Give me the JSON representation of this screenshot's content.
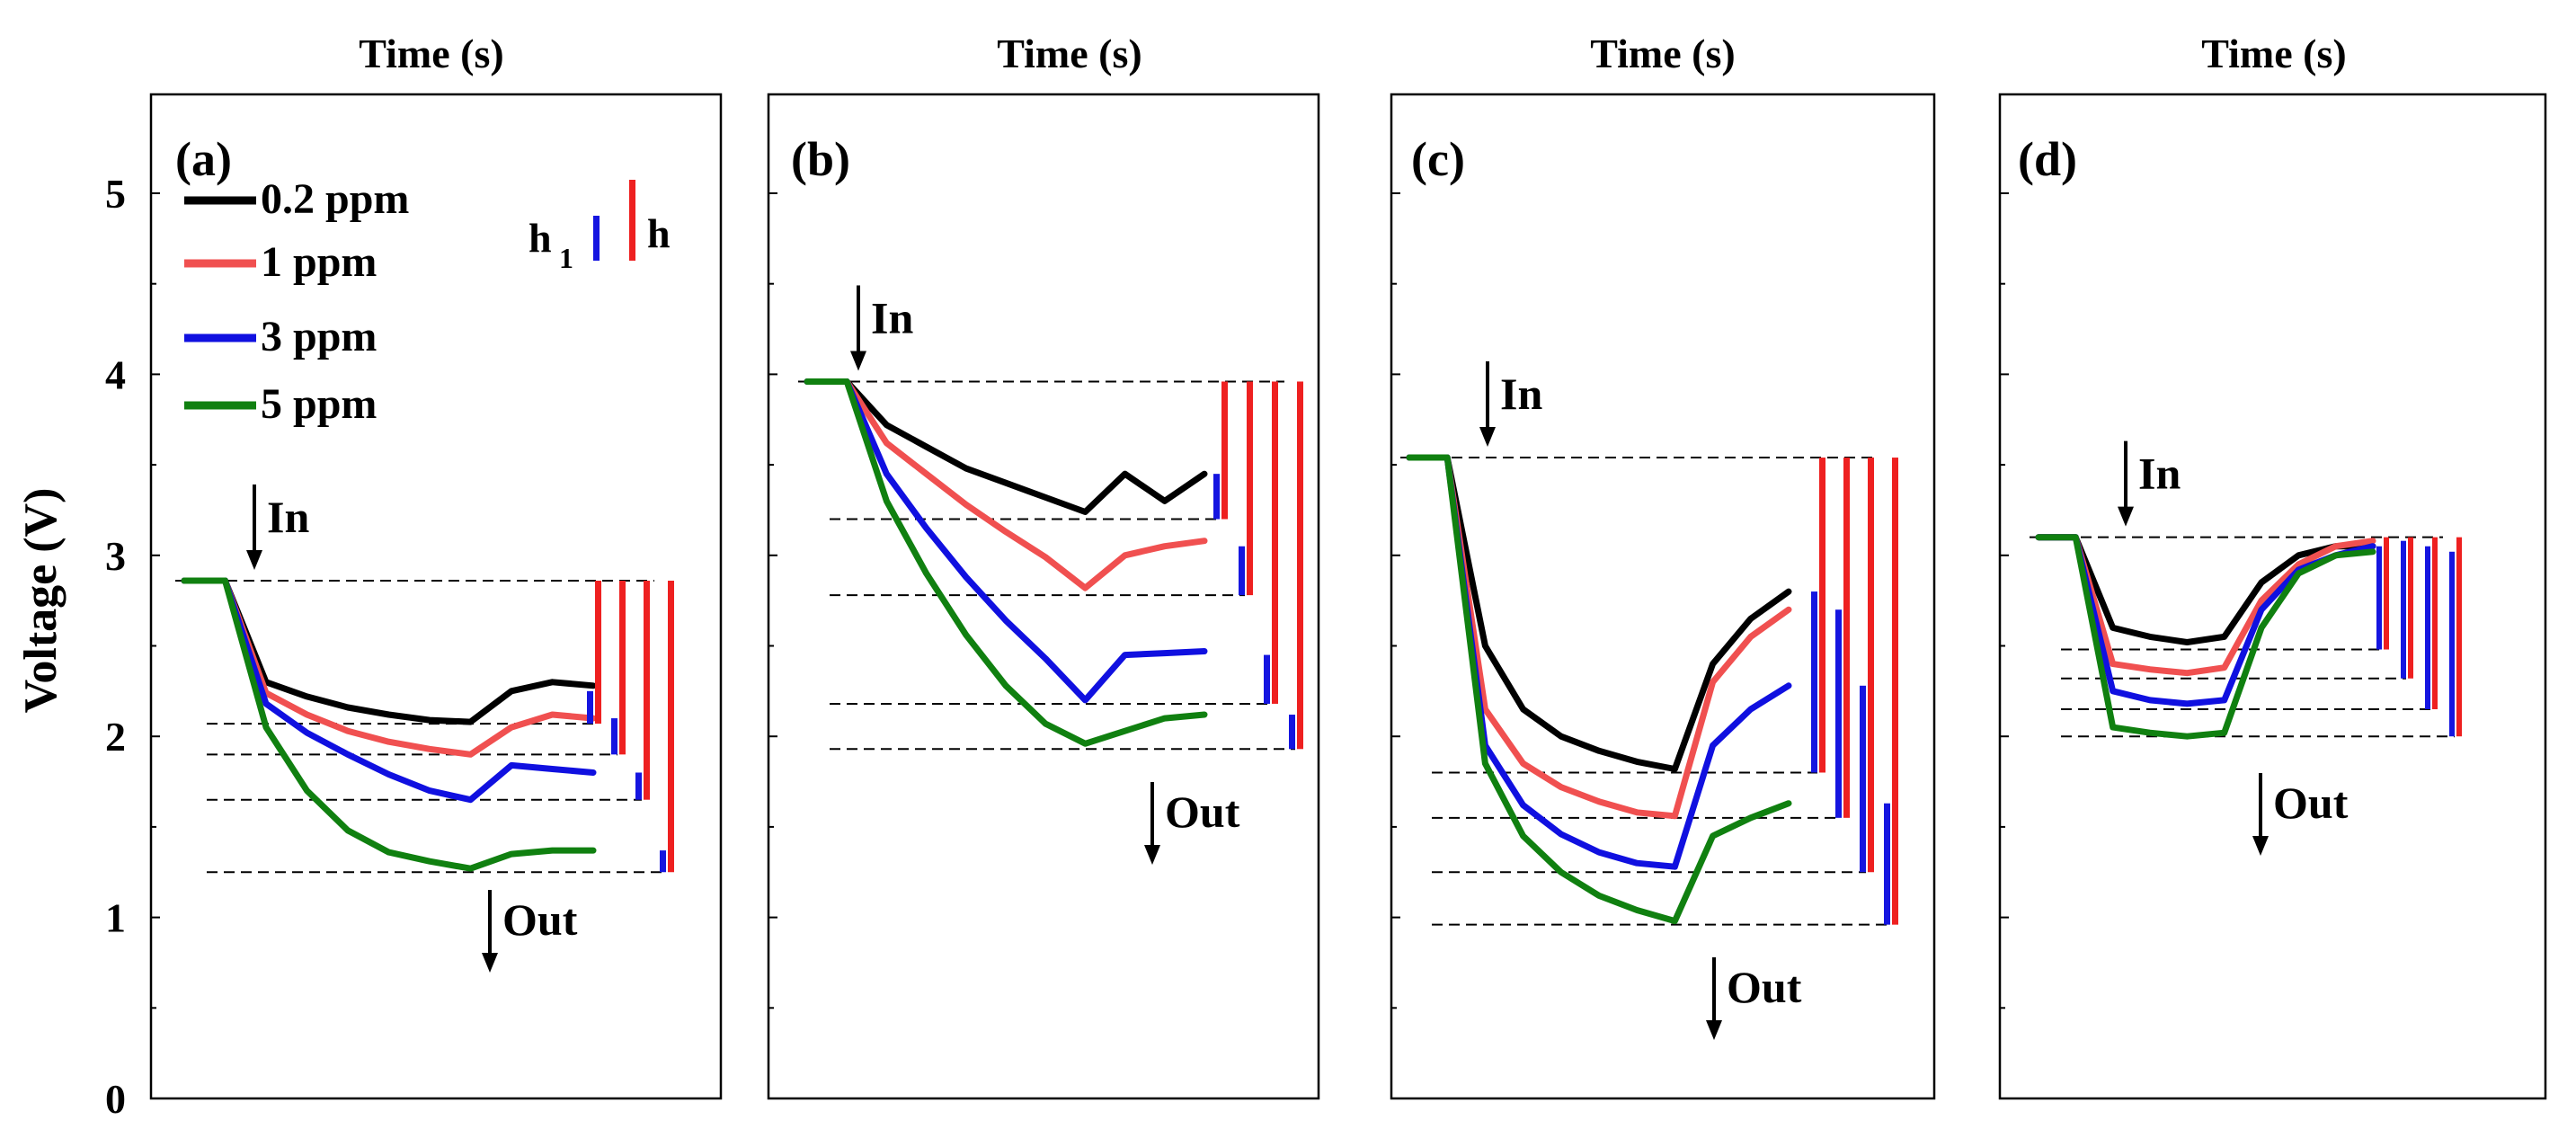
{
  "chart_data": {
    "type": "line",
    "ylabel": "Voltage (V)",
    "ylim": [
      0,
      5.5
    ],
    "yticks": [
      "0",
      "1",
      "2",
      "3",
      "4",
      "5"
    ],
    "legend": {
      "h1_main": "h",
      "h1_sub": "1",
      "h_label": "h",
      "entries": [
        {
          "name": "0.2 ppm",
          "color": "#000000"
        },
        {
          "name": "1 ppm",
          "color": "#f05050"
        },
        {
          "name": "3 ppm",
          "color": "#1010e0"
        },
        {
          "name": "5 ppm",
          "color": "#108010"
        }
      ]
    },
    "panels": [
      {
        "label": "(a)",
        "xlabel": "Time (s)",
        "in_label": "In",
        "out_label": "Out",
        "baseline": 2.86,
        "series": [
          {
            "name": "0.2 ppm",
            "values": [
              2.86,
              2.86,
              2.3,
              2.22,
              2.16,
              2.12,
              2.09,
              2.08,
              2.25,
              2.3,
              2.28
            ]
          },
          {
            "name": "1 ppm",
            "values": [
              2.86,
              2.86,
              2.24,
              2.12,
              2.03,
              1.97,
              1.93,
              1.9,
              2.05,
              2.12,
              2.1
            ]
          },
          {
            "name": "3 ppm",
            "values": [
              2.86,
              2.86,
              2.18,
              2.02,
              1.9,
              1.79,
              1.7,
              1.65,
              1.84,
              1.82,
              1.8
            ]
          },
          {
            "name": "5 ppm",
            "values": [
              2.86,
              2.86,
              2.05,
              1.7,
              1.48,
              1.36,
              1.31,
              1.27,
              1.35,
              1.37,
              1.37
            ]
          }
        ],
        "minima": [
          2.07,
          1.9,
          1.65,
          1.25
        ],
        "recovery_min": [
          2.25,
          2.1,
          1.8,
          1.37
        ]
      },
      {
        "label": "(b)",
        "xlabel": "Time (s)",
        "in_label": "In",
        "out_label": "Out",
        "baseline": 3.96,
        "series": [
          {
            "name": "0.2 ppm",
            "values": [
              3.96,
              3.96,
              3.72,
              3.6,
              3.48,
              3.4,
              3.32,
              3.24,
              3.45,
              3.3,
              3.45
            ]
          },
          {
            "name": "1 ppm",
            "values": [
              3.96,
              3.96,
              3.62,
              3.45,
              3.28,
              3.13,
              2.99,
              2.82,
              3.0,
              3.05,
              3.08
            ]
          },
          {
            "name": "3 ppm",
            "values": [
              3.96,
              3.96,
              3.45,
              3.15,
              2.88,
              2.64,
              2.43,
              2.2,
              2.45,
              2.46,
              2.47
            ]
          },
          {
            "name": "5 ppm",
            "values": [
              3.96,
              3.96,
              3.3,
              2.9,
              2.56,
              2.28,
              2.07,
              1.96,
              2.03,
              2.1,
              2.12
            ]
          }
        ],
        "minima": [
          3.2,
          2.78,
          2.18,
          1.93
        ],
        "recovery_min": [
          3.45,
          3.05,
          2.45,
          2.12
        ]
      },
      {
        "label": "(c)",
        "xlabel": "Time (s)",
        "in_label": "In",
        "out_label": "Out",
        "baseline": 3.54,
        "series": [
          {
            "name": "0.2 ppm",
            "values": [
              3.54,
              3.54,
              2.5,
              2.15,
              2.0,
              1.92,
              1.86,
              1.82,
              2.4,
              2.65,
              2.8
            ]
          },
          {
            "name": "1 ppm",
            "values": [
              3.54,
              3.54,
              2.15,
              1.85,
              1.72,
              1.64,
              1.58,
              1.56,
              2.3,
              2.55,
              2.7
            ]
          },
          {
            "name": "3 ppm",
            "values": [
              3.54,
              3.54,
              1.95,
              1.62,
              1.46,
              1.36,
              1.3,
              1.28,
              1.95,
              2.15,
              2.28
            ]
          },
          {
            "name": "5 ppm",
            "values": [
              3.54,
              3.54,
              1.85,
              1.45,
              1.25,
              1.12,
              1.04,
              0.98,
              1.45,
              1.55,
              1.63
            ]
          }
        ],
        "minima": [
          1.8,
          1.55,
          1.25,
          0.96
        ],
        "recovery_min": [
          2.8,
          2.7,
          2.28,
          1.63
        ]
      },
      {
        "label": "(d)",
        "xlabel": "Time (s)",
        "in_label": "In",
        "out_label": "Out",
        "baseline": 3.1,
        "series": [
          {
            "name": "0.2 ppm",
            "values": [
              3.1,
              3.1,
              2.6,
              2.55,
              2.52,
              2.55,
              2.85,
              3.0,
              3.05,
              3.05
            ]
          },
          {
            "name": "1 ppm",
            "values": [
              3.1,
              3.1,
              2.4,
              2.37,
              2.35,
              2.38,
              2.75,
              2.95,
              3.05,
              3.08
            ]
          },
          {
            "name": "3 ppm",
            "values": [
              3.1,
              3.1,
              2.25,
              2.2,
              2.18,
              2.2,
              2.7,
              2.92,
              3.0,
              3.05
            ]
          },
          {
            "name": "5 ppm",
            "values": [
              3.1,
              3.1,
              2.05,
              2.02,
              2.0,
              2.02,
              2.6,
              2.9,
              3.0,
              3.02
            ]
          }
        ],
        "minima": [
          2.48,
          2.32,
          2.15,
          2.0
        ],
        "recovery_min": [
          3.05,
          3.08,
          3.05,
          3.02
        ]
      }
    ]
  }
}
